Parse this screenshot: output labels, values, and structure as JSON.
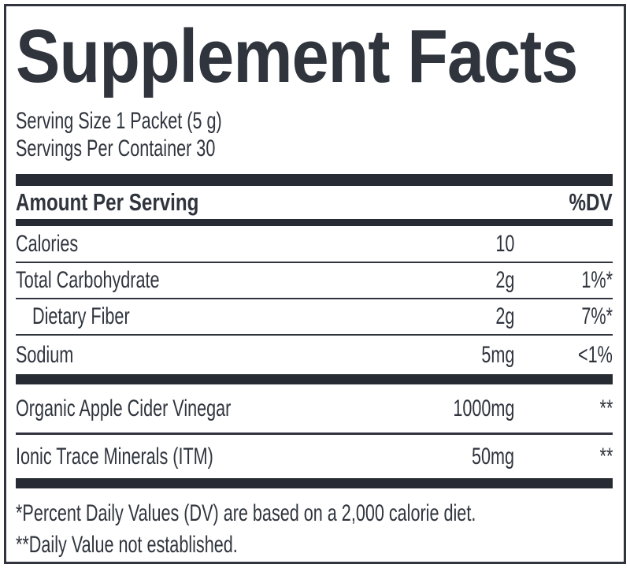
{
  "colors": {
    "ink": "#2f343d",
    "bar": "#272c34",
    "background": "#ffffff"
  },
  "label": {
    "title": "Supplement Facts",
    "serving": {
      "size_line": "Serving Size 1 Packet (5 g)",
      "container_line": "Servings Per Container 30"
    },
    "columns": {
      "amount_header": "Amount Per Serving",
      "dv_header": "%DV"
    },
    "rows": [
      {
        "name": "Calories",
        "amount": "10",
        "dv": "",
        "indent": false,
        "divider_after": "thin"
      },
      {
        "name": "Total Carbohydrate",
        "amount": "2g",
        "dv": "1%*",
        "indent": false,
        "divider_after": "thin"
      },
      {
        "name": "Dietary Fiber",
        "amount": "2g",
        "dv": "7%*",
        "indent": true,
        "divider_after": "thin"
      },
      {
        "name": "Sodium",
        "amount": "5mg",
        "dv": "<1%",
        "indent": false,
        "divider_after": "thick"
      },
      {
        "name": "Organic Apple Cider Vinegar",
        "amount": "1000mg",
        "dv": "**",
        "indent": false,
        "divider_after": "medium"
      },
      {
        "name": "Ionic Trace Minerals (ITM)",
        "amount": "50mg",
        "dv": "**",
        "indent": false,
        "divider_after": "thick"
      }
    ],
    "footnotes": [
      "*Percent Daily Values (DV) are based on a 2,000 calorie diet.",
      "**Daily Value not established."
    ]
  }
}
